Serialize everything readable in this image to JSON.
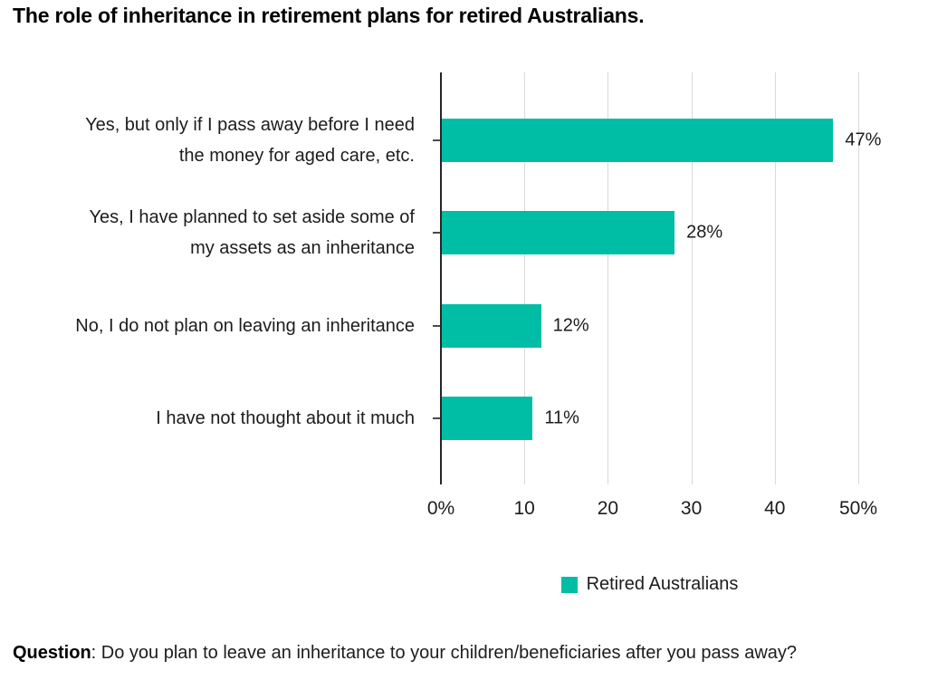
{
  "title": "The role of inheritance in retirement plans for retired Australians.",
  "chart_data": {
    "type": "bar",
    "orientation": "horizontal",
    "title": "The role of inheritance in retirement plans for retired Australians.",
    "categories": [
      "Yes, but only if I pass away before I need\nthe money for aged care, etc.",
      "Yes, I have planned to set aside some of\nmy assets as an inheritance",
      "No, I do not plan on leaving an inheritance",
      "I have not thought about it much"
    ],
    "series": [
      {
        "name": "Retired Australians",
        "values": [
          47,
          28,
          12,
          11
        ]
      }
    ],
    "value_labels": [
      "47%",
      "28%",
      "12%",
      "11%"
    ],
    "x_tick_values": [
      0,
      10,
      20,
      30,
      40,
      50
    ],
    "x_tick_labels": [
      "0%",
      "10",
      "20",
      "30",
      "40",
      "50%"
    ],
    "xlim": [
      0,
      50
    ],
    "xlabel": "",
    "ylabel": "",
    "grid": true,
    "legend_position": "bottom-center",
    "bar_color": "#00bda6",
    "gridline_color": "#d9d9d9",
    "axis_color": "#262626"
  },
  "footer": {
    "label": "Question",
    "rest": ": Do you plan to leave an inheritance to your children/beneficiaries after you pass away?"
  }
}
